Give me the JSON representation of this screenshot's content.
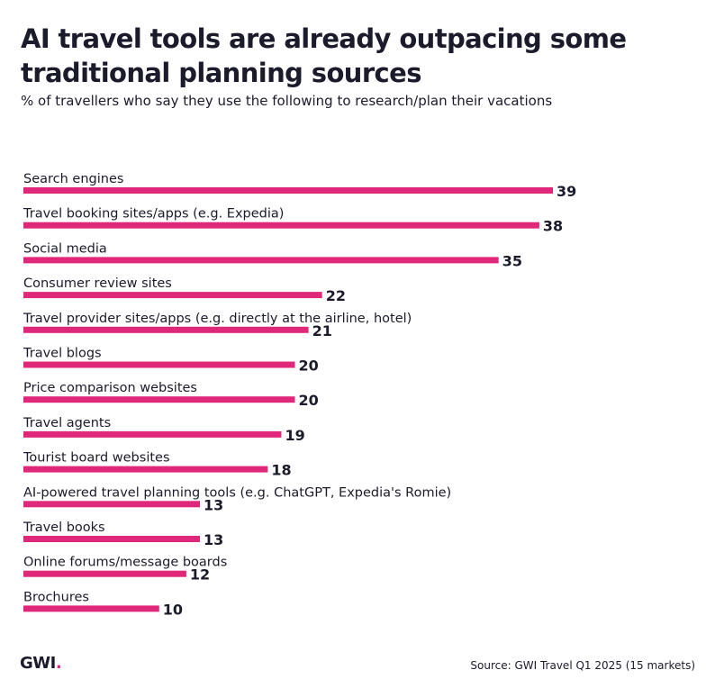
{
  "header": {
    "title": "AI travel tools are already outpacing some traditional planning sources",
    "subtitle": "% of travellers who say they use the following to research/plan their vacations"
  },
  "footer": {
    "logo_text": "GWI",
    "logo_dot": ".",
    "source": "Source: GWI Travel Q1 2025 (15 markets)"
  },
  "colors": {
    "bar": "#e0287a",
    "text": "#1b1b2b"
  },
  "chart_data": {
    "type": "bar",
    "orientation": "horizontal",
    "title": "AI travel tools are already outpacing some traditional planning sources",
    "subtitle": "% of travellers who say they use the following to research/plan their vacations",
    "categories": [
      "Search engines",
      "Travel booking sites/apps (e.g. Expedia)",
      "Social media",
      "Consumer review sites",
      "Travel provider sites/apps (e.g. directly at the airline, hotel)",
      "Travel blogs",
      "Price comparison websites",
      "Travel agents",
      "Tourist board websites",
      "AI-powered travel planning tools (e.g. ChatGPT, Expedia's Romie)",
      "Travel books",
      "Online forums/message boards",
      "Brochures"
    ],
    "values": [
      39,
      38,
      35,
      22,
      21,
      20,
      20,
      19,
      18,
      13,
      13,
      12,
      10
    ],
    "data_labels": [
      "39",
      "38",
      "35",
      "22",
      "21",
      "20",
      "20",
      "19",
      "18",
      "13",
      "13",
      "12",
      "10"
    ],
    "xlim": [
      0,
      39
    ],
    "grid": false,
    "legend": "none"
  }
}
